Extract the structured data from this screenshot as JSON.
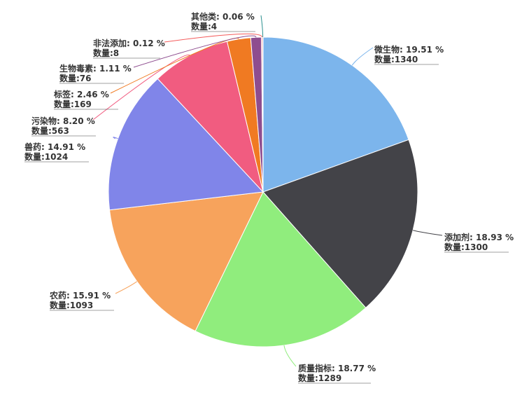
{
  "chart_data": {
    "type": "pie",
    "slices": [
      {
        "name": "微生物",
        "percent": "19.51 %",
        "count": 1340,
        "color": "#7cb5ec"
      },
      {
        "name": "添加剂",
        "percent": "18.93 %",
        "count": 1300,
        "color": "#434348"
      },
      {
        "name": "质量指标",
        "percent": "18.77 %",
        "count": 1289,
        "color": "#90ed7d"
      },
      {
        "name": "农药",
        "percent": "15.91 %",
        "count": 1093,
        "color": "#f7a35c"
      },
      {
        "name": "兽药",
        "percent": "14.91 %",
        "count": 1024,
        "color": "#8085e9"
      },
      {
        "name": "污染物",
        "percent": "8.20 %",
        "count": 563,
        "color": "#f15c80"
      },
      {
        "name": "标签",
        "percent": "2.46 %",
        "count": 169,
        "color": "#f07a22"
      },
      {
        "name": "生物毒素",
        "percent": "1.11 %",
        "count": 76,
        "color": "#8e4d8f"
      },
      {
        "name": "非法添加",
        "percent": "0.12 %",
        "count": 8,
        "color": "#f45b5b"
      },
      {
        "name": "其他类",
        "percent": "0.06 %",
        "count": 4,
        "color": "#2b908f"
      }
    ],
    "count_label": "数量"
  }
}
